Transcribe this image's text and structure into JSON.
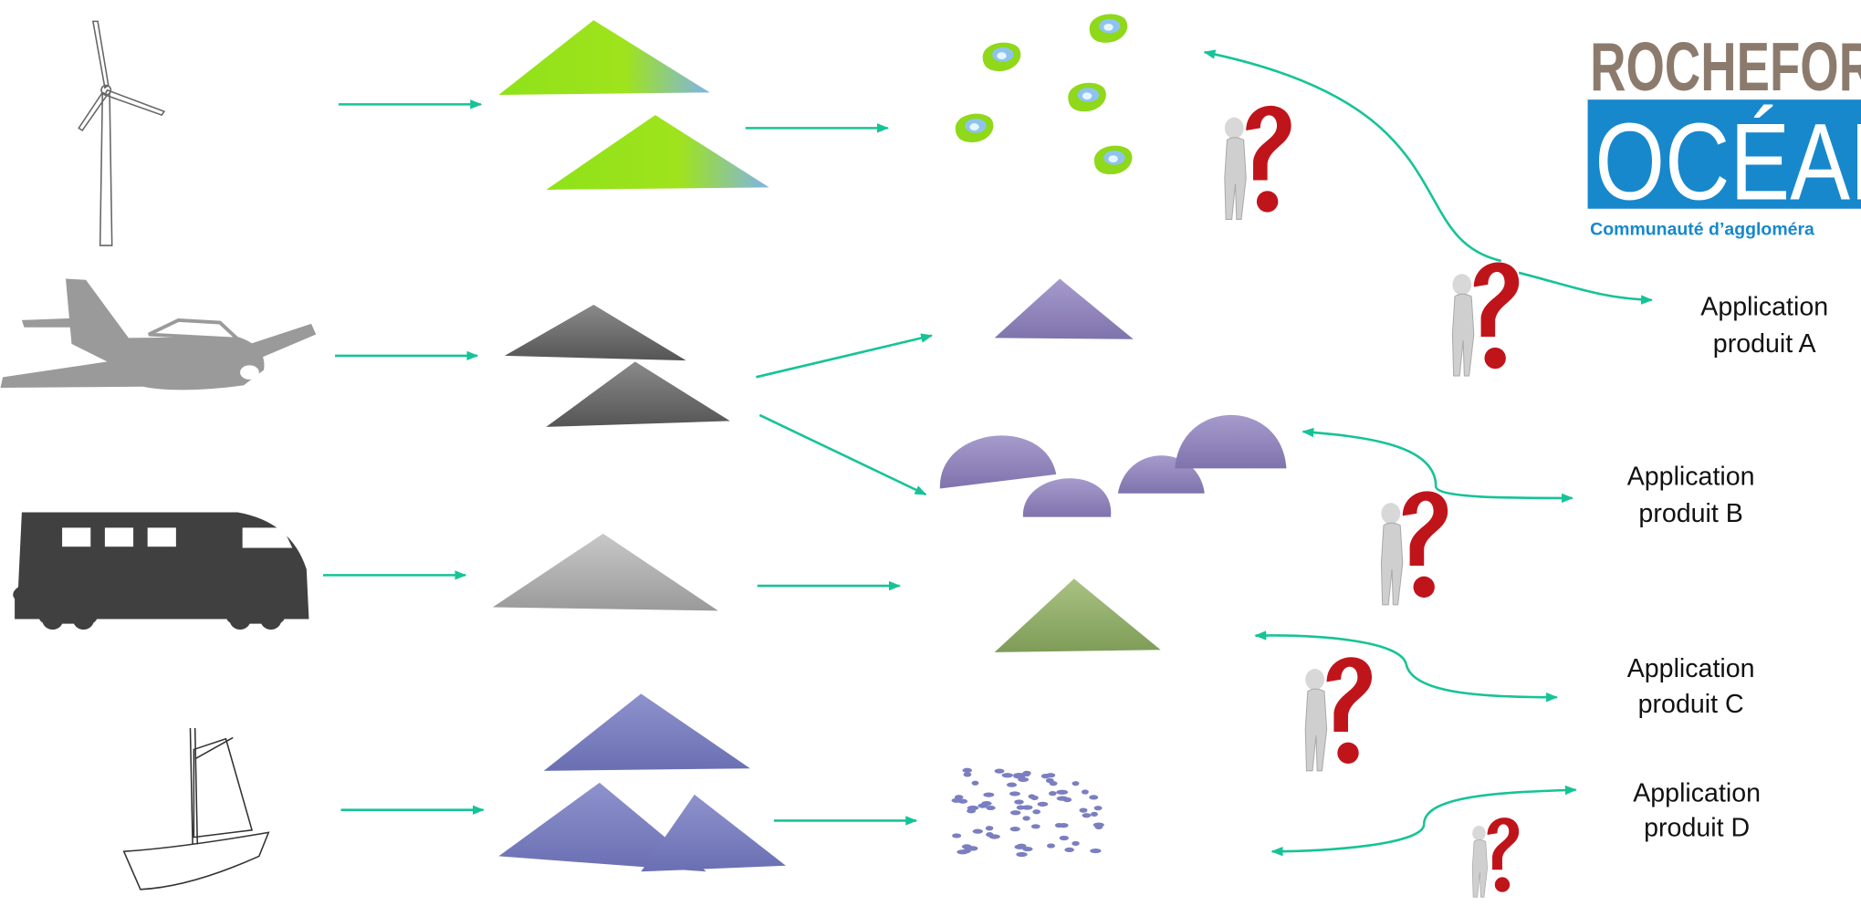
{
  "logo": {
    "line1": "ROCHEFOR",
    "line2": "OCÉAN",
    "line3": "Communauté d’aggloméra"
  },
  "applications": [
    {
      "line1": "Application",
      "line2": "produit A"
    },
    {
      "line1": "Application",
      "line2": "produit B"
    },
    {
      "line1": "Application",
      "line2": "produit C"
    },
    {
      "line1": "Application",
      "line2": "produit D"
    }
  ]
}
